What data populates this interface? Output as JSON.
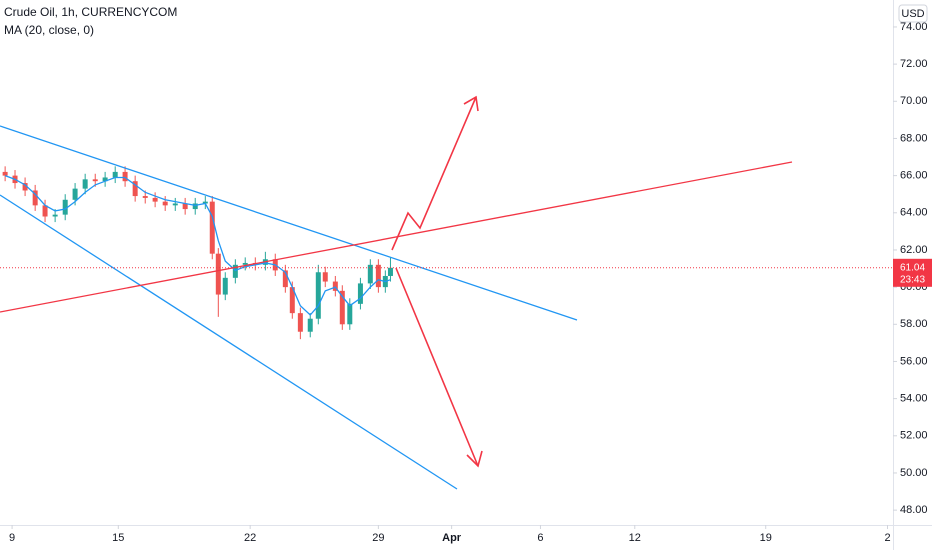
{
  "chart_data": {
    "type": "candlestick",
    "title": "Crude Oil, 1h, CURRENCYCOM",
    "indicator": "MA (20, close, 0)",
    "currency": "USD",
    "up_color": "#26a69a",
    "down_color": "#ef5350",
    "x": [
      0.62,
      1.16,
      1.71,
      2.26,
      2.8,
      3.35,
      3.9,
      4.44,
      4.99,
      5.54,
      6.08,
      6.63,
      7.17,
      7.72,
      8.27,
      8.81,
      9.36,
      9.91,
      10.45,
      11.0,
      11.55,
      11.93,
      12.26,
      12.64,
      13.19,
      13.73,
      14.28,
      14.83,
      15.37,
      15.92,
      16.3,
      16.74,
      17.28,
      17.72,
      18.1,
      18.65,
      19.03,
      19.44,
      20.02,
      20.56,
      21.0,
      21.38,
      21.66
    ],
    "open": [
      66.2,
      66.0,
      65.6,
      65.2,
      64.4,
      63.8,
      63.9,
      64.7,
      65.3,
      65.8,
      65.7,
      65.9,
      66.2,
      65.7,
      64.9,
      64.8,
      64.6,
      64.4,
      64.5,
      64.2,
      64.5,
      64.6,
      61.8,
      59.6,
      60.5,
      61.2,
      61.3,
      61.2,
      61.5,
      60.9,
      60.0,
      58.6,
      57.6,
      58.3,
      60.8,
      60.3,
      59.8,
      58.0,
      59.1,
      60.2,
      61.2,
      60.0,
      60.6
    ],
    "close": [
      66.0,
      65.6,
      65.2,
      64.4,
      63.8,
      63.9,
      64.7,
      65.3,
      65.8,
      65.7,
      65.9,
      66.2,
      65.7,
      64.9,
      64.8,
      64.6,
      64.4,
      64.5,
      64.2,
      64.5,
      64.6,
      61.8,
      59.6,
      60.5,
      61.2,
      61.3,
      61.2,
      61.5,
      60.9,
      60.0,
      58.6,
      57.6,
      58.3,
      60.8,
      60.3,
      59.8,
      58.0,
      59.1,
      60.2,
      61.2,
      60.0,
      60.6,
      61.04
    ],
    "high": [
      66.5,
      66.3,
      65.9,
      65.5,
      64.7,
      64.2,
      65.0,
      65.6,
      66.1,
      66.1,
      66.2,
      66.5,
      66.5,
      66.0,
      65.2,
      65.1,
      64.9,
      64.8,
      64.8,
      64.8,
      64.9,
      64.9,
      62.1,
      60.8,
      61.5,
      61.6,
      61.6,
      61.9,
      61.8,
      61.2,
      60.3,
      58.9,
      58.6,
      61.2,
      61.1,
      60.6,
      60.1,
      59.4,
      60.5,
      61.5,
      61.5,
      60.9,
      61.6
    ],
    "low": [
      65.7,
      65.3,
      64.9,
      64.1,
      63.5,
      63.5,
      63.6,
      64.4,
      65.0,
      65.4,
      65.4,
      65.6,
      65.4,
      64.6,
      64.5,
      64.3,
      64.1,
      64.1,
      63.9,
      63.9,
      64.2,
      61.5,
      58.4,
      59.3,
      60.2,
      60.9,
      60.9,
      60.9,
      60.6,
      59.7,
      58.3,
      57.2,
      57.3,
      58.0,
      60.0,
      59.5,
      57.7,
      57.7,
      58.8,
      59.9,
      59.7,
      59.7,
      60.3
    ],
    "ma": [
      66.0,
      65.8,
      65.5,
      65.0,
      64.4,
      64.1,
      64.2,
      64.6,
      65.1,
      65.5,
      65.7,
      65.9,
      65.9,
      65.5,
      65.1,
      64.9,
      64.7,
      64.6,
      64.5,
      64.4,
      64.5,
      63.8,
      62.5,
      61.4,
      60.9,
      61.1,
      61.2,
      61.3,
      61.2,
      60.8,
      60.0,
      59.0,
      58.5,
      59.0,
      59.8,
      60.0,
      59.5,
      59.0,
      59.4,
      60.0,
      60.4,
      60.3,
      60.4
    ],
    "ma_color": "#2196f3",
    "last_price": 61.04,
    "countdown": "23:43",
    "ylim": [
      47.2,
      75.45
    ],
    "yticks": [
      {
        "value": 48,
        "label": "48.00"
      },
      {
        "value": 50,
        "label": "50.00"
      },
      {
        "value": 52,
        "label": "52.00"
      },
      {
        "value": 54,
        "label": "54.00"
      },
      {
        "value": 56,
        "label": "56.00"
      },
      {
        "value": 58,
        "label": "58.00"
      },
      {
        "value": 60,
        "label": "60.00"
      },
      {
        "value": 62,
        "label": "62.00"
      },
      {
        "value": 64,
        "label": "64.00"
      },
      {
        "value": 66,
        "label": "66.00"
      },
      {
        "value": 68,
        "label": "68.00"
      },
      {
        "value": 70,
        "label": "70.00"
      },
      {
        "value": 72,
        "label": "72.00"
      },
      {
        "value": 74,
        "label": "74.00"
      }
    ],
    "xlim": [
      0.34,
      49.1
    ],
    "xticks": [
      {
        "value": 1,
        "label": "9"
      },
      {
        "value": 6.8,
        "label": "15"
      },
      {
        "value": 14,
        "label": "22"
      },
      {
        "value": 21,
        "label": "29"
      },
      {
        "value": 25,
        "label": "Apr"
      },
      {
        "value": 29.85,
        "label": "6"
      },
      {
        "value": 35,
        "label": "12"
      },
      {
        "value": 42.15,
        "label": "19"
      },
      {
        "value": 48.8,
        "label": "2"
      }
    ]
  }
}
